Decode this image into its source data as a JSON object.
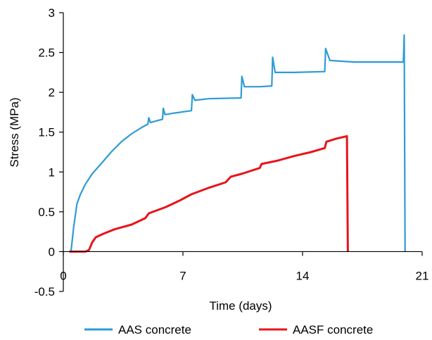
{
  "chart_data": {
    "type": "line",
    "title": "",
    "xlabel": "Time (days)",
    "ylabel": "Stress (MPa)",
    "xlim": [
      0,
      21
    ],
    "ylim": [
      -0.5,
      3
    ],
    "x_ticks": [
      "0",
      "7",
      "14",
      "21"
    ],
    "y_ticks": [
      "-0.5",
      "0",
      "0.5",
      "1",
      "1.5",
      "2",
      "2.5",
      "3"
    ],
    "x_tick_values": [
      0,
      7,
      14,
      21
    ],
    "y_tick_values": [
      -0.5,
      0,
      0.5,
      1,
      1.5,
      2,
      2.5,
      3
    ],
    "grid": false,
    "legend_position": "bottom",
    "series": [
      {
        "name": "AAS concrete",
        "color": "#2E9BD6",
        "points": [
          [
            0.45,
            0
          ],
          [
            0.6,
            0.3
          ],
          [
            0.8,
            0.6
          ],
          [
            1.0,
            0.72
          ],
          [
            1.3,
            0.85
          ],
          [
            1.7,
            0.98
          ],
          [
            2.2,
            1.1
          ],
          [
            2.8,
            1.25
          ],
          [
            3.4,
            1.38
          ],
          [
            4.0,
            1.48
          ],
          [
            4.6,
            1.56
          ],
          [
            4.95,
            1.6
          ],
          [
            5.0,
            1.68
          ],
          [
            5.1,
            1.62
          ],
          [
            5.6,
            1.65
          ],
          [
            5.8,
            1.66
          ],
          [
            5.85,
            1.8
          ],
          [
            5.95,
            1.72
          ],
          [
            6.5,
            1.74
          ],
          [
            7.5,
            1.77
          ],
          [
            7.55,
            1.97
          ],
          [
            7.7,
            1.9
          ],
          [
            8.5,
            1.92
          ],
          [
            10.4,
            1.93
          ],
          [
            10.45,
            2.2
          ],
          [
            10.6,
            2.07
          ],
          [
            11.5,
            2.07
          ],
          [
            12.2,
            2.08
          ],
          [
            12.25,
            2.44
          ],
          [
            12.4,
            2.25
          ],
          [
            13.5,
            2.25
          ],
          [
            15.3,
            2.26
          ],
          [
            15.35,
            2.55
          ],
          [
            15.6,
            2.4
          ],
          [
            17.0,
            2.38
          ],
          [
            19.9,
            2.38
          ],
          [
            19.95,
            2.72
          ],
          [
            20.0,
            0
          ]
        ]
      },
      {
        "name": "AASF concrete",
        "color": "#E8141A",
        "points": [
          [
            0.35,
            0
          ],
          [
            1.3,
            0
          ],
          [
            1.5,
            0.02
          ],
          [
            1.7,
            0.12
          ],
          [
            1.9,
            0.18
          ],
          [
            2.3,
            0.22
          ],
          [
            3.0,
            0.28
          ],
          [
            4.0,
            0.34
          ],
          [
            4.8,
            0.42
          ],
          [
            5.0,
            0.48
          ],
          [
            6.0,
            0.56
          ],
          [
            6.8,
            0.64
          ],
          [
            7.5,
            0.72
          ],
          [
            8.5,
            0.8
          ],
          [
            9.5,
            0.87
          ],
          [
            9.8,
            0.94
          ],
          [
            10.5,
            0.98
          ],
          [
            11.5,
            1.05
          ],
          [
            11.6,
            1.1
          ],
          [
            12.5,
            1.14
          ],
          [
            13.5,
            1.2
          ],
          [
            14.5,
            1.25
          ],
          [
            15.3,
            1.3
          ],
          [
            15.4,
            1.38
          ],
          [
            16.0,
            1.42
          ],
          [
            16.6,
            1.45
          ],
          [
            16.65,
            0
          ]
        ]
      }
    ]
  }
}
